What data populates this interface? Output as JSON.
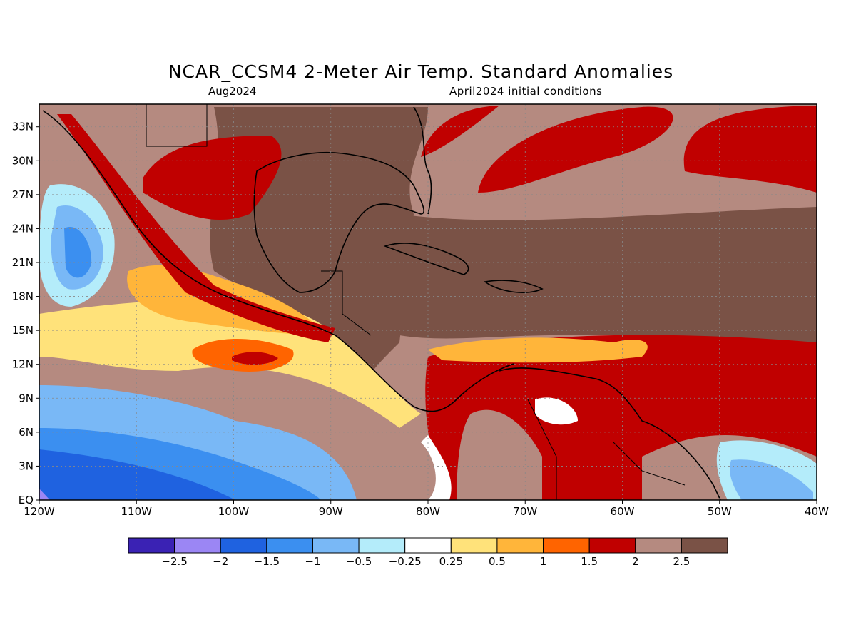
{
  "title": "NCAR_CCSM4 2-Meter Air Temp. Standard Anomalies",
  "valid_month": "Aug2024",
  "init_label": "April2024 initial conditions",
  "map": {
    "lon_ticks": [
      "120W",
      "110W",
      "100W",
      "90W",
      "80W",
      "70W",
      "60W",
      "50W",
      "40W"
    ],
    "lat_ticks": [
      "EQ",
      "3N",
      "6N",
      "9N",
      "12N",
      "15N",
      "18N",
      "21N",
      "24N",
      "27N",
      "30N",
      "33N"
    ],
    "extent": {
      "lon": [
        -120,
        -40
      ],
      "lat": [
        0,
        35
      ]
    }
  },
  "colorbar": {
    "colors": [
      "#3a22b4",
      "#9b86f4",
      "#1f62e0",
      "#3b8ff0",
      "#79b8f6",
      "#b4ecfa",
      "#ffffff",
      "#ffe27a",
      "#ffb53a",
      "#ff6400",
      "#c00000",
      "#b58a80",
      "#7a5246"
    ],
    "labels": [
      "-2.5",
      "-2",
      "-1.5",
      "-1",
      "-0.5",
      "-0.25",
      "0.25",
      "0.5",
      "1",
      "1.5",
      "2",
      "2.5"
    ]
  },
  "regions": [
    {
      "name": "gulf-caribbean-high",
      "value": "2.5"
    },
    {
      "name": "pacific-negative",
      "value": "-1.5"
    }
  ]
}
